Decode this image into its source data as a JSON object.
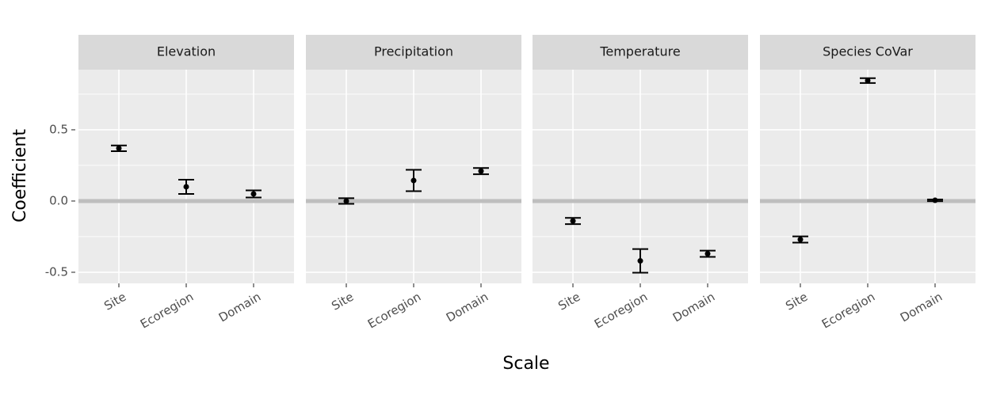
{
  "chart_data": {
    "type": "errorbar",
    "x_label": "Scale",
    "y_label": "Coefficient",
    "categories": [
      "Site",
      "Ecoregion",
      "Domain"
    ],
    "ylim": [
      -0.578,
      0.922
    ],
    "yticks": [
      -0.5,
      {
        "value": 0,
        "label": "0.0"
      },
      0.5
    ],
    "reference_line": 0,
    "grid": true,
    "color": "#000000",
    "panels": [
      {
        "title": "Elevation",
        "values": [
          0.37,
          0.1,
          0.05
        ],
        "errors": [
          0.02,
          0.05,
          0.025
        ]
      },
      {
        "title": "Precipitation",
        "values": [
          0.0,
          0.144,
          0.21
        ],
        "errors": [
          0.02,
          0.075,
          0.022
        ]
      },
      {
        "title": "Temperature",
        "values": [
          -0.14,
          -0.42,
          -0.37
        ],
        "errors": [
          0.022,
          0.083,
          0.022
        ]
      },
      {
        "title": "Species CoVar",
        "values": [
          -0.27,
          0.845,
          0.005
        ],
        "errors": [
          0.022,
          0.017,
          0.006
        ]
      }
    ]
  }
}
